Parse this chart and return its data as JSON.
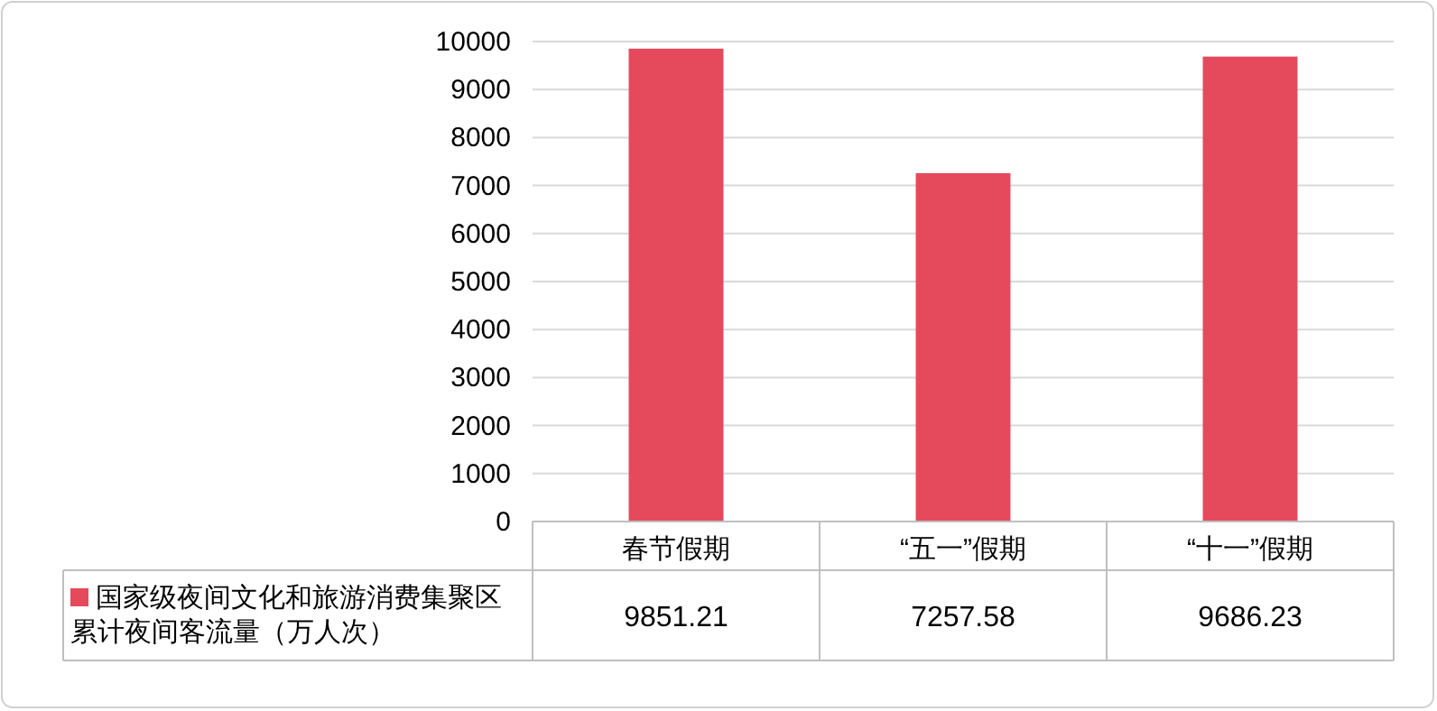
{
  "chart_data": {
    "type": "bar",
    "categories": [
      "春节假期",
      "“五一”假期",
      "“十一”假期"
    ],
    "series": [
      {
        "name": "国家级夜间文化和旅游消费集聚区累计夜间客流量（万人次）",
        "color": "#e54a5c",
        "values": [
          9851.21,
          7257.58,
          9686.23
        ]
      }
    ],
    "ylim": [
      0,
      10000
    ],
    "yticks": [
      0,
      1000,
      2000,
      3000,
      4000,
      5000,
      6000,
      7000,
      8000,
      9000,
      10000
    ],
    "grid": "y",
    "data_labels": true,
    "legend": "bottom left"
  }
}
